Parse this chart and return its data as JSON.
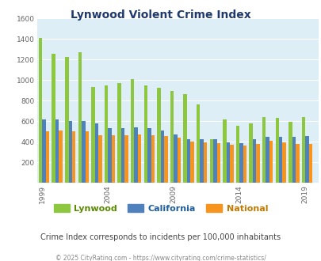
{
  "title": "Lynwood Violent Crime Index",
  "years": [
    1999,
    2000,
    2001,
    2002,
    2003,
    2004,
    2005,
    2006,
    2007,
    2008,
    2009,
    2010,
    2011,
    2012,
    2013,
    2014,
    2015,
    2016,
    2017,
    2018,
    2019
  ],
  "lynwood": [
    1410,
    1255,
    1220,
    1270,
    930,
    950,
    970,
    1010,
    950,
    920,
    890,
    860,
    760,
    420,
    615,
    555,
    575,
    640,
    630,
    595,
    635
  ],
  "california": [
    615,
    615,
    600,
    600,
    580,
    530,
    530,
    540,
    530,
    510,
    470,
    425,
    420,
    420,
    395,
    385,
    420,
    450,
    450,
    450,
    455
  ],
  "national": [
    500,
    505,
    500,
    500,
    465,
    460,
    465,
    470,
    465,
    455,
    440,
    400,
    390,
    385,
    370,
    365,
    375,
    410,
    395,
    375,
    380
  ],
  "lynwood_color": "#8dc63f",
  "california_color": "#4f81bd",
  "national_color": "#f7941d",
  "bg_color": "#ddeef6",
  "ylim": [
    0,
    1600
  ],
  "yticks": [
    0,
    200,
    400,
    600,
    800,
    1000,
    1200,
    1400,
    1600
  ],
  "xtick_labels": [
    "1999",
    "2004",
    "2009",
    "2014",
    "2019"
  ],
  "xtick_year_positions": [
    1999,
    2004,
    2009,
    2014,
    2019
  ],
  "subtitle": "Crime Index corresponds to incidents per 100,000 inhabitants",
  "footer": "© 2025 CityRating.com - https://www.cityrating.com/crime-statistics/",
  "legend_labels": [
    "Lynwood",
    "California",
    "National"
  ],
  "title_color": "#1f3a6e",
  "subtitle_color": "#444444",
  "footer_color": "#888888",
  "legend_label_colors": [
    "#5a8a00",
    "#1f5fa0",
    "#c47a00"
  ]
}
